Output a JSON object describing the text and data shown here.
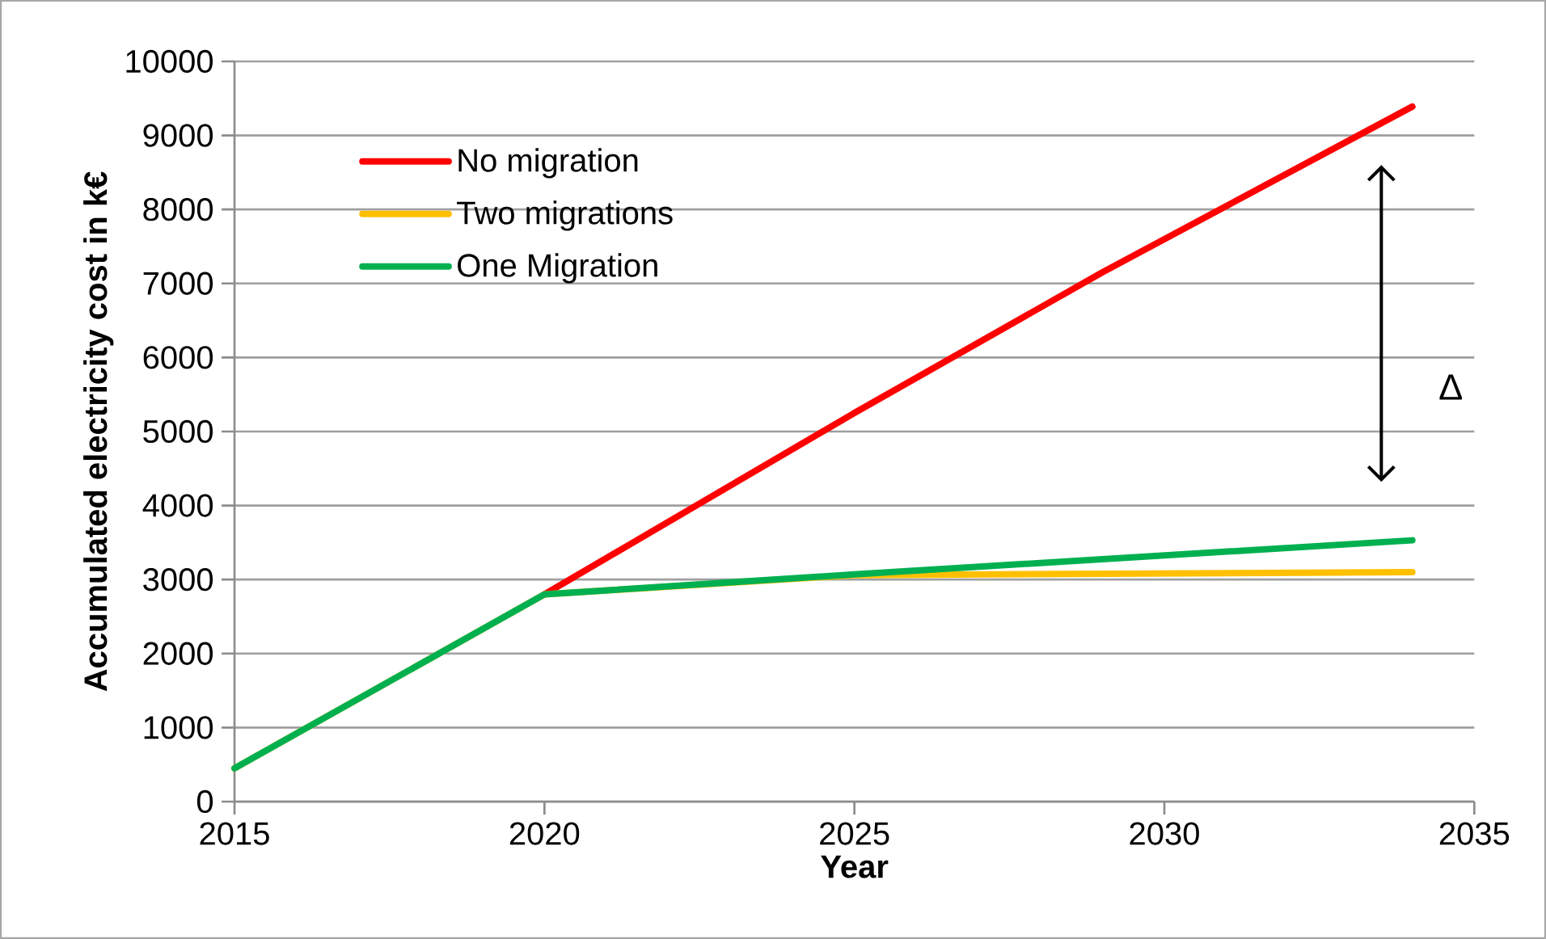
{
  "chart_data": {
    "type": "line",
    "xlabel": "Year",
    "ylabel": "Accumulated electricity cost in k€",
    "xlim": [
      2015,
      2035
    ],
    "xticks": [
      2015,
      2020,
      2025,
      2030,
      2035
    ],
    "ylim": [
      0,
      10000
    ],
    "yticks": [
      0,
      1000,
      2000,
      3000,
      4000,
      5000,
      6000,
      7000,
      8000,
      9000,
      10000
    ],
    "grid": "y",
    "legend": "top left",
    "marker": "none",
    "line_style": "solid",
    "annotations": [
      "Δ"
    ],
    "series": [
      {
        "name": "No migration",
        "color": "#ff0000",
        "x": [
          2020,
          2025,
          2029,
          2034
        ],
        "values": [
          2800,
          5250,
          7150,
          9390
        ]
      },
      {
        "name": "Two migrations",
        "color": "#ffc000",
        "x": [
          2015,
          2020,
          2025,
          2034
        ],
        "values": [
          450,
          2800,
          3060,
          3100
        ]
      },
      {
        "name": "One Migration",
        "color": "#00b050",
        "x": [
          2015,
          2020,
          2025,
          2034
        ],
        "values": [
          450,
          2800,
          3070,
          3530
        ]
      }
    ]
  }
}
